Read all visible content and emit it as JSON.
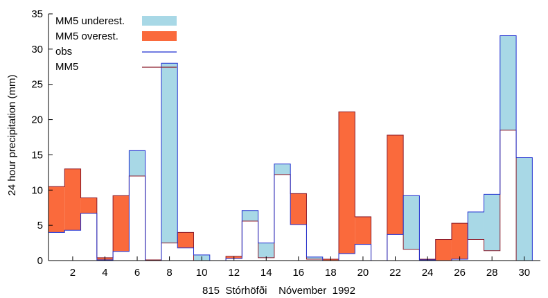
{
  "chart_data": {
    "type": "bar",
    "ylabel": "24 hour precipitation (mm)",
    "caption": "815  Stórhöfði    Nóvember  1992",
    "ylim": [
      0,
      35
    ],
    "yticks": [
      0,
      5,
      10,
      15,
      20,
      25,
      30,
      35
    ],
    "xlim": [
      0.5,
      31
    ],
    "xticks": [
      2,
      4,
      6,
      8,
      10,
      12,
      14,
      16,
      18,
      20,
      22,
      24,
      26,
      28,
      30
    ],
    "days": [
      1,
      2,
      3,
      4,
      5,
      6,
      7,
      8,
      9,
      10,
      11,
      12,
      13,
      14,
      15,
      16,
      17,
      18,
      19,
      20,
      21,
      22,
      23,
      24,
      25,
      26,
      27,
      28,
      29,
      30
    ],
    "series": [
      {
        "name": "obs",
        "values": [
          4.0,
          4.3,
          6.7,
          0.1,
          1.3,
          15.6,
          0.0,
          28.0,
          1.8,
          0.8,
          0.0,
          0.3,
          7.1,
          2.5,
          13.7,
          5.1,
          0.5,
          0.0,
          1.0,
          2.3,
          0.0,
          3.7,
          9.2,
          0.1,
          0.0,
          0.2,
          6.9,
          9.4,
          31.9,
          14.6
        ]
      },
      {
        "name": "MM5",
        "values": [
          10.5,
          13.0,
          8.9,
          0.4,
          9.2,
          12.0,
          0.1,
          2.5,
          4.0,
          0.0,
          0.0,
          0.6,
          5.6,
          0.4,
          12.2,
          9.5,
          0.2,
          0.2,
          21.1,
          6.2,
          0.0,
          17.8,
          1.6,
          0.2,
          3.0,
          5.3,
          3.0,
          1.4,
          18.5,
          0.0
        ]
      }
    ],
    "legend": {
      "position": "top-left",
      "entries": [
        {
          "label": "MM5 underest.",
          "kind": "fill"
        },
        {
          "label": "MM5 overest.",
          "kind": "fill"
        },
        {
          "label": "obs",
          "kind": "line"
        },
        {
          "label": "MM5",
          "kind": "line"
        }
      ]
    },
    "colors": {
      "underest": "#a8d8e6",
      "overest": "#fa6a3c",
      "obs": "#1f2fd0",
      "mm5": "#8b1a2a",
      "axis": "#000000"
    }
  }
}
